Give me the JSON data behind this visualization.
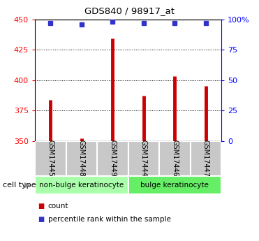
{
  "title": "GDS840 / 98917_at",
  "samples": [
    "GSM17445",
    "GSM17448",
    "GSM17449",
    "GSM17444",
    "GSM17446",
    "GSM17447"
  ],
  "counts": [
    384,
    352,
    434,
    387,
    403,
    395
  ],
  "percentile_ranks": [
    97,
    96,
    98,
    97,
    97,
    97
  ],
  "ylim_left": [
    350,
    450
  ],
  "ylim_right": [
    0,
    100
  ],
  "yticks_left": [
    350,
    375,
    400,
    425,
    450
  ],
  "yticks_right": [
    0,
    25,
    50,
    75,
    100
  ],
  "ytick_labels_right": [
    "0",
    "25",
    "50",
    "75",
    "100%"
  ],
  "bar_color": "#cc0000",
  "dot_color": "#3333cc",
  "groups": [
    {
      "label": "non-bulge keratinocyte",
      "indices": [
        0,
        1,
        2
      ],
      "color": "#aaffaa"
    },
    {
      "label": "bulge keratinocyte",
      "indices": [
        3,
        4,
        5
      ],
      "color": "#66ee66"
    }
  ],
  "cell_type_label": "cell type",
  "legend_items": [
    {
      "color": "#cc0000",
      "label": "count"
    },
    {
      "color": "#3333cc",
      "label": "percentile rank within the sample"
    }
  ],
  "grid_color": "black",
  "background_color": "#ffffff",
  "sample_box_color": "#c8c8c8"
}
